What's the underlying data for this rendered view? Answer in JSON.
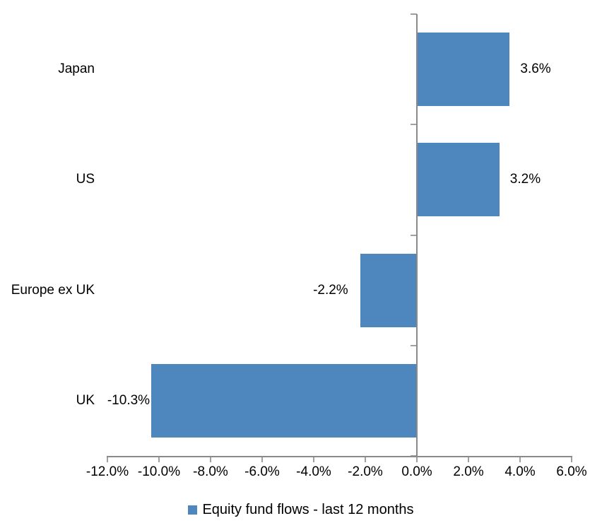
{
  "chart_data": {
    "type": "bar",
    "orientation": "horizontal",
    "title": "",
    "xlabel": "",
    "ylabel": "",
    "categories": [
      "Japan",
      "US",
      "Europe ex UK",
      "UK"
    ],
    "series": [
      {
        "name": "Equity fund flows - last 12 months",
        "values": [
          3.6,
          3.2,
          -2.2,
          -10.3
        ],
        "data_labels": [
          "3.6%",
          "3.2%",
          "-2.2%",
          "-10.3%"
        ]
      }
    ],
    "xlim": [
      -12,
      6
    ],
    "x_ticks": [
      -12,
      -10,
      -8,
      -6,
      -4,
      -2,
      0,
      2,
      4,
      6
    ],
    "x_tick_labels": [
      "-12.0%",
      "-10.0%",
      "-8.0%",
      "-6.0%",
      "-4.0%",
      "-2.0%",
      "0.0%",
      "2.0%",
      "4.0%",
      "6.0%"
    ],
    "grid": false,
    "legend_position": "bottom",
    "colors": {
      "bar": "#4E86BE",
      "axis_line": "#8A8A8A",
      "tick": "#A0A0A0",
      "text": "#000000",
      "background": "#FFFFFF"
    }
  },
  "legend": {
    "label": "Equity fund flows - last 12 months"
  }
}
